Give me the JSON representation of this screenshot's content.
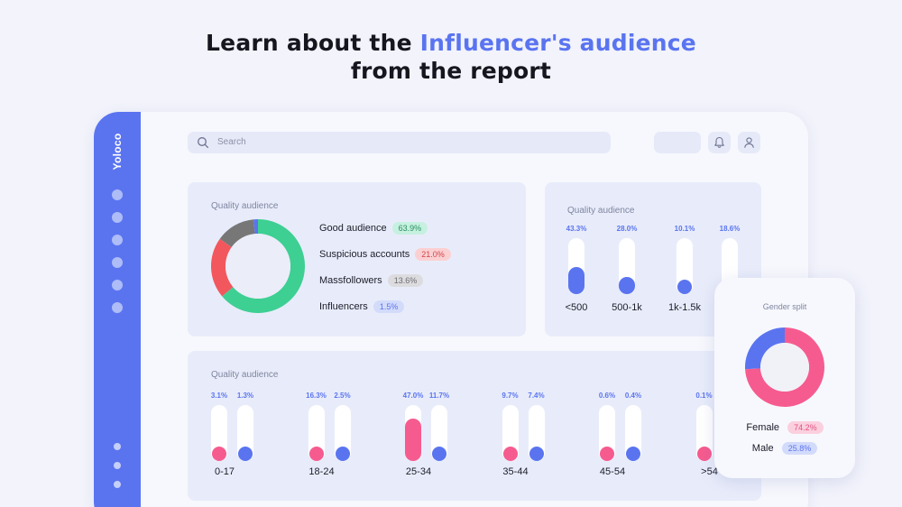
{
  "headline": {
    "line1_prefix": "Learn about the ",
    "line1_accent": "Influencer's audience",
    "line2": "from the report"
  },
  "app": {
    "brand": "Yoloco",
    "search_placeholder": "Search",
    "accent_color": "#5a74f0"
  },
  "quality_card": {
    "title": "Quality audience",
    "items": [
      {
        "label": "Good audience",
        "value": "63.9%",
        "color": "#3ecf93",
        "badge_bg": "#c6f0df",
        "badge_fg": "#2a8e63"
      },
      {
        "label": "Suspicious accounts",
        "value": "21.0%",
        "color": "#f2575d",
        "badge_bg": "#fbd0d2",
        "badge_fg": "#d2454b"
      },
      {
        "label": "Massfollowers",
        "value": "13.6%",
        "color": "#777777",
        "badge_bg": "#dcdcdf",
        "badge_fg": "#6c6c72"
      },
      {
        "label": "Influencers",
        "value": "1.5%",
        "color": "#5a74f0",
        "badge_bg": "#d3dbfb",
        "badge_fg": "#5a74f0"
      }
    ]
  },
  "followers_card": {
    "title": "Quality audience",
    "columns": [
      {
        "label": "<500",
        "value": "43.3%",
        "fraction": 0.433
      },
      {
        "label": "500-1k",
        "value": "28.0%",
        "fraction": 0.28
      },
      {
        "label": "1k-1.5k",
        "value": "10.1%",
        "fraction": 0.101
      },
      {
        "label": "",
        "value": "18.6%",
        "fraction": 0.186
      }
    ]
  },
  "age_card": {
    "title": "Quality audience",
    "groups": [
      {
        "label": "0-17",
        "female": "3.1%",
        "female_fraction": 0.031,
        "male": "1.3%",
        "male_fraction": 0.013
      },
      {
        "label": "18-24",
        "female": "16.3%",
        "female_fraction": 0.163,
        "male": "2.5%",
        "male_fraction": 0.025
      },
      {
        "label": "25-34",
        "female": "47.0%",
        "female_fraction": 0.47,
        "male": "11.7%",
        "male_fraction": 0.117
      },
      {
        "label": "35-44",
        "female": "9.7%",
        "female_fraction": 0.097,
        "male": "7.4%",
        "male_fraction": 0.074
      },
      {
        "label": "45-54",
        "female": "0.6%",
        "female_fraction": 0.006,
        "male": "0.4%",
        "male_fraction": 0.004
      },
      {
        "label": ">54",
        "female": "0.1%",
        "female_fraction": 0.001,
        "male": "",
        "male_fraction": 0
      }
    ],
    "female_color": "#f65b8f",
    "male_color": "#5a74f0"
  },
  "gender_card": {
    "title": "Gender split",
    "female_label": "Female",
    "female_value": "74.2%",
    "female_fraction": 0.742,
    "male_label": "Male",
    "male_value": "25.8%",
    "male_fraction": 0.258,
    "female_color": "#f65b8f",
    "male_color": "#5a74f0"
  }
}
